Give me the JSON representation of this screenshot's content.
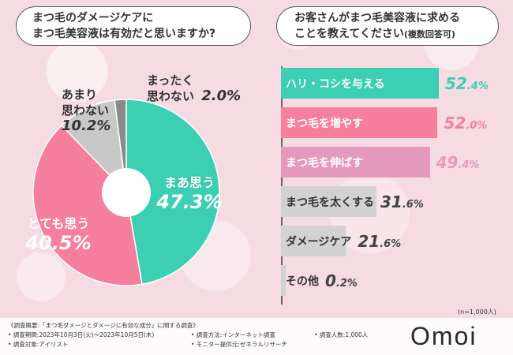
{
  "left_question": {
    "line1": "まつ毛のダメージケアに",
    "line2": "まつ毛美容液は有効だと思いますか?"
  },
  "right_question": {
    "line1": "お客さんがまつ毛美容液に求める",
    "line2": "ことを教えてください",
    "line2_sub": "(複数回答可)"
  },
  "pie_labels": [
    {
      "line1": "まあ思う",
      "pct": "47.3%"
    },
    {
      "line1": "とても思う",
      "pct": "40.5%"
    },
    {
      "line1": "あまり",
      "line2": "思わない",
      "pct": "10.2%"
    },
    {
      "line1": "まったく",
      "line2": "思わない",
      "pct": "2.0%"
    }
  ],
  "bar_labels": [
    {
      "label": "ハリ・コシを与える",
      "value": "52.4%"
    },
    {
      "label": "まつ毛を増やす",
      "value": "52.0%"
    },
    {
      "label": "まつ毛を伸ばす",
      "value": "49.4%"
    },
    {
      "label": "まつ毛を太くする",
      "value": "31.6%"
    },
    {
      "label": "ダメージケア",
      "value": "21.6%"
    },
    {
      "label": "その他",
      "value": "0.2%"
    }
  ],
  "chart_data": [
    {
      "type": "pie",
      "title": "まつ毛のダメージケアにまつ毛美容液は有効だと思いますか?",
      "categories": [
        "まあ思う",
        "とても思う",
        "あまり思わない",
        "まったく思わない"
      ],
      "values": [
        47.3,
        40.5,
        10.2,
        2.0
      ],
      "colors": [
        "#3ccfb4",
        "#f57f9c",
        "#c8c8c8",
        "#8a8a8a"
      ],
      "unit": "%",
      "start_angle": "top",
      "direction": "clockwise"
    },
    {
      "type": "bar",
      "orientation": "horizontal",
      "title": "お客さんがまつ毛美容液に求めることを教えてください(複数回答可)",
      "categories": [
        "ハリ・コシを与える",
        "まつ毛を増やす",
        "まつ毛を伸ばす",
        "まつ毛を太くする",
        "ダメージケア",
        "その他"
      ],
      "values": [
        52.4,
        52.0,
        49.4,
        31.6,
        21.6,
        0.2
      ],
      "colors": [
        "#3ccfb4",
        "#f57f9c",
        "#e69abb",
        "#d2d2d2",
        "#d2d2d2",
        "#d2d2d2"
      ],
      "value_colors": [
        "#3ccfb4",
        "#f57f9c",
        "#e69abb",
        "#444444",
        "#444444",
        "#444444"
      ],
      "label_colors": [
        "#ffffff",
        "#ffffff",
        "#ffffff",
        "#333333",
        "#333333",
        "#333333"
      ],
      "unit": "%",
      "note": "(n=1,000人)"
    }
  ],
  "footer": {
    "heading": "《調査概要:「まつ毛ダメージとダメージに有効な成分」に関する調査》",
    "period": "• 調査期間:2023年10月3日(火)～2023年10月5日(木)",
    "method": "• 調査方法:インターネット調査",
    "count": "• 調査人数:1,000人",
    "target": "• 調査対象:アイリスト",
    "provider": "• モニター提供元:ゼネラルリサーチ"
  },
  "logo": "Omoi"
}
